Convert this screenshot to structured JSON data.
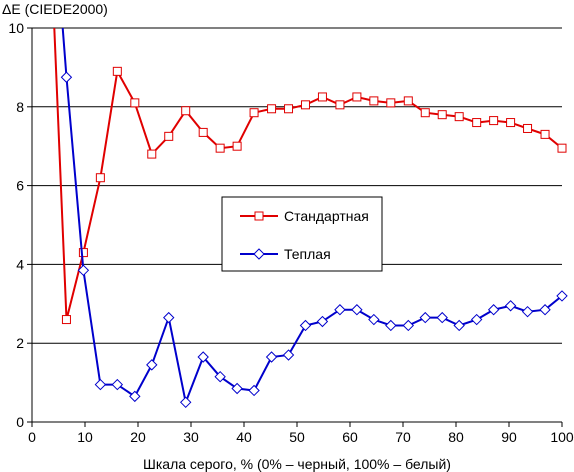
{
  "chart_data": {
    "type": "line",
    "ylabel": "ΔE (CIEDE2000)",
    "xlabel": "Шкала серого, % (0% – черный, 100% – белый)",
    "xlim": [
      0,
      100
    ],
    "ylim": [
      0,
      10
    ],
    "xticks": [
      0,
      10,
      20,
      30,
      40,
      50,
      60,
      70,
      80,
      90,
      100
    ],
    "yticks": [
      0,
      2,
      4,
      6,
      8,
      10
    ],
    "grid": "horizontal",
    "legend_position": "center",
    "series": [
      {
        "name": "Стандартная",
        "color": "#e00000",
        "marker": "square",
        "start_above": [
          4.2,
          10.0
        ],
        "points": [
          [
            6.5,
            2.6
          ],
          [
            9.7,
            4.3
          ],
          [
            12.9,
            6.2
          ],
          [
            16.1,
            8.9
          ],
          [
            19.4,
            8.1
          ],
          [
            22.6,
            6.8
          ],
          [
            25.8,
            7.25
          ],
          [
            29.0,
            7.9
          ],
          [
            32.3,
            7.35
          ],
          [
            35.5,
            6.95
          ],
          [
            38.7,
            7.0
          ],
          [
            41.9,
            7.85
          ],
          [
            45.2,
            7.95
          ],
          [
            48.4,
            7.95
          ],
          [
            51.6,
            8.05
          ],
          [
            54.8,
            8.25
          ],
          [
            58.1,
            8.05
          ],
          [
            61.3,
            8.25
          ],
          [
            64.5,
            8.15
          ],
          [
            67.7,
            8.1
          ],
          [
            71.0,
            8.15
          ],
          [
            74.2,
            7.85
          ],
          [
            77.4,
            7.8
          ],
          [
            80.6,
            7.75
          ],
          [
            83.9,
            7.6
          ],
          [
            87.1,
            7.65
          ],
          [
            90.3,
            7.6
          ],
          [
            93.5,
            7.45
          ],
          [
            96.8,
            7.3
          ],
          [
            100.0,
            6.95
          ]
        ]
      },
      {
        "name": "Теплая",
        "color": "#0000cc",
        "marker": "diamond",
        "start_above": [
          5.8,
          10.0
        ],
        "points": [
          [
            6.5,
            8.75
          ],
          [
            9.7,
            3.85
          ],
          [
            12.9,
            0.95
          ],
          [
            16.1,
            0.95
          ],
          [
            19.4,
            0.65
          ],
          [
            22.6,
            1.45
          ],
          [
            25.8,
            2.65
          ],
          [
            29.0,
            0.5
          ],
          [
            32.3,
            1.65
          ],
          [
            35.5,
            1.15
          ],
          [
            38.7,
            0.85
          ],
          [
            41.9,
            0.8
          ],
          [
            45.2,
            1.65
          ],
          [
            48.4,
            1.7
          ],
          [
            51.6,
            2.45
          ],
          [
            54.8,
            2.55
          ],
          [
            58.1,
            2.85
          ],
          [
            61.3,
            2.85
          ],
          [
            64.5,
            2.6
          ],
          [
            67.7,
            2.45
          ],
          [
            71.0,
            2.45
          ],
          [
            74.2,
            2.65
          ],
          [
            77.4,
            2.65
          ],
          [
            80.6,
            2.45
          ],
          [
            83.9,
            2.6
          ],
          [
            87.1,
            2.85
          ],
          [
            90.3,
            2.95
          ],
          [
            93.5,
            2.8
          ],
          [
            96.8,
            2.85
          ],
          [
            100.0,
            3.2
          ]
        ]
      }
    ]
  }
}
